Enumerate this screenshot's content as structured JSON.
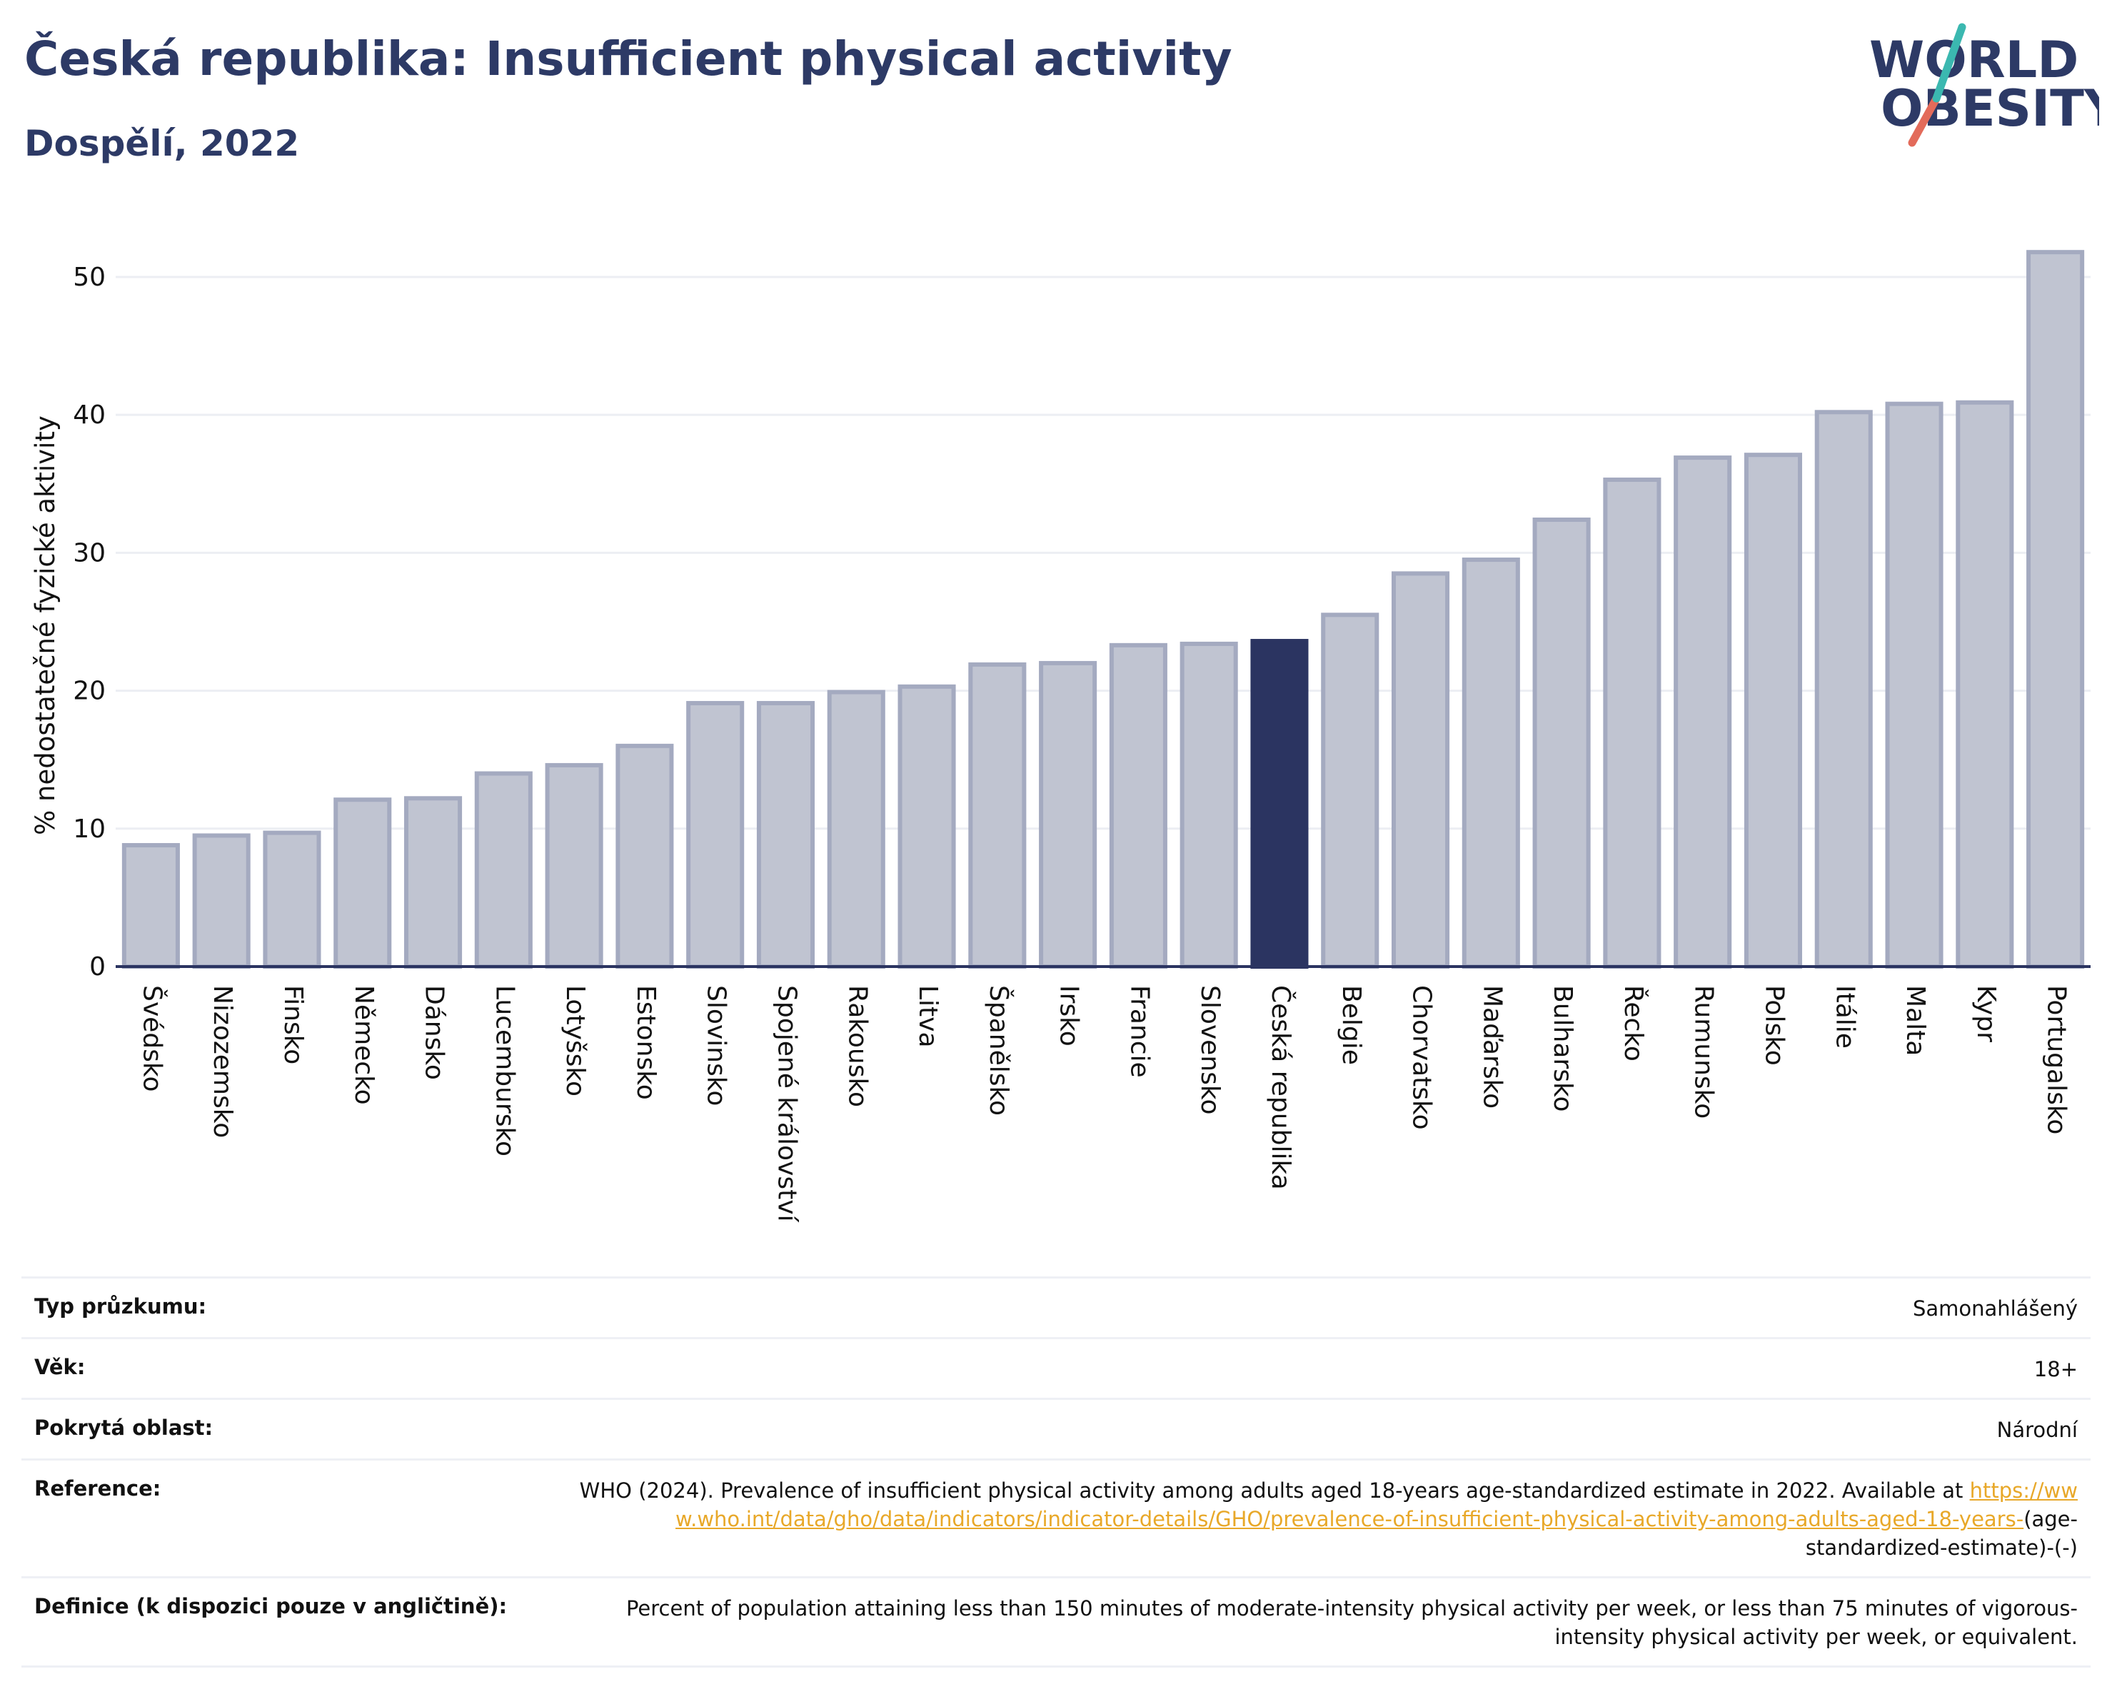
{
  "header": {
    "title": "Česká republika: Insufficient physical activity",
    "subtitle": "Dospělí, 2022"
  },
  "logo": {
    "line1": "WORLD",
    "line2": "OBESITY",
    "text_color": "#2d3a66",
    "slash_colors": [
      "#e36b5a",
      "#3bb8b0"
    ]
  },
  "colors": {
    "bar": "#c0c4d1",
    "bar_stroke": "#a4aac0",
    "highlight": "#2b3461",
    "grid": "#eceef3",
    "axis": "#2b3461",
    "link": "#e8a829"
  },
  "chart_data": {
    "type": "bar",
    "title": "Česká republika: Insufficient physical activity",
    "subtitle": "Dospělí, 2022",
    "xlabel": "",
    "ylabel": "% nedostatečné fyzické aktivity",
    "ylim": [
      0,
      53
    ],
    "yticks": [
      0,
      10,
      20,
      30,
      40,
      50
    ],
    "grid": true,
    "highlight": "Česká republika",
    "categories": [
      "Švédsko",
      "Nizozemsko",
      "Finsko",
      "Německo",
      "Dánsko",
      "Lucembursko",
      "Lotyšsko",
      "Estonsko",
      "Slovinsko",
      "Spojené království",
      "Rakousko",
      "Litva",
      "Španělsko",
      "Irsko",
      "Francie",
      "Slovensko",
      "Česká republika",
      "Belgie",
      "Chorvatsko",
      "Maďarsko",
      "Bulharsko",
      "Řecko",
      "Rumunsko",
      "Polsko",
      "Itálie",
      "Malta",
      "Kypr",
      "Portugalsko"
    ],
    "values": [
      8.8,
      9.5,
      9.7,
      12.1,
      12.2,
      14.0,
      14.6,
      16.0,
      19.1,
      19.1,
      19.9,
      20.3,
      21.9,
      22.0,
      23.3,
      23.4,
      23.6,
      25.5,
      28.5,
      29.5,
      32.4,
      35.3,
      36.9,
      37.1,
      40.2,
      40.8,
      40.9,
      51.8
    ]
  },
  "info": {
    "survey_type_label": "Typ průzkumu:",
    "survey_type_value": "Samonahlášený",
    "age_label": "Věk:",
    "age_value": "18+",
    "coverage_label": "Pokrytá oblast:",
    "coverage_value": "Národní",
    "reference_label": "Reference:",
    "reference_text": "WHO (2024). Prevalence of insufficient physical activity among adults aged 18-years age-standardized estimate in 2022. Available at ",
    "reference_link": "https://www.who.int/data/gho/data/indicators/indicator-details/GHO/prevalence-of-insufficient-physical-activity-among-adults-aged-18-years-",
    "reference_suffix": "(age-standardized-estimate)-(-)",
    "definition_label": "Definice (k dispozici pouze v angličtině):",
    "definition_text": "Percent of population attaining less than 150 minutes of moderate-intensity physical activity per week, or less than 75 minutes of vigorous-intensity physical activity per week, or equivalent."
  }
}
